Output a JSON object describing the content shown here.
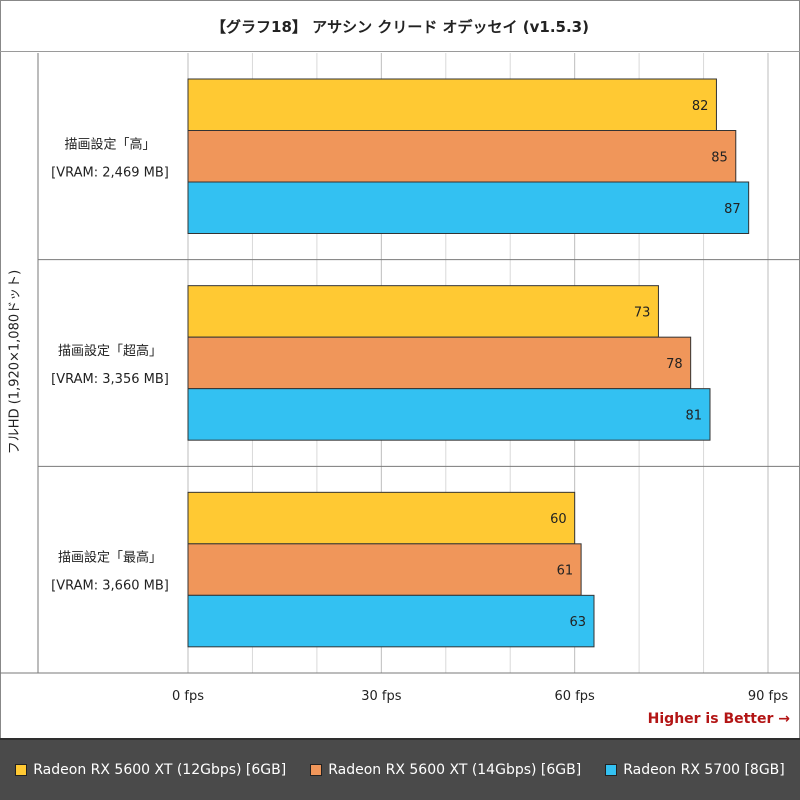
{
  "chart_data": {
    "type": "bar",
    "orientation": "horizontal",
    "title": "【グラフ18】 アサシン クリード オデッセイ (v1.5.3)",
    "group_axis_label": "フルHD (1,920×1,080ドット)",
    "groups": [
      {
        "label_line1": "描画設定「高」",
        "label_line2": "[VRAM: 2,469 MB]"
      },
      {
        "label_line1": "描画設定「超高」",
        "label_line2": "[VRAM: 3,356 MB]"
      },
      {
        "label_line1": "描画設定「最高」",
        "label_line2": "[VRAM: 3,660 MB]"
      }
    ],
    "series": [
      {
        "name": "Radeon RX 5600 XT (12Gbps) [6GB]",
        "color": "#ffc933",
        "values": [
          82,
          73,
          60
        ]
      },
      {
        "name": "Radeon RX 5600 XT (14Gbps) [6GB]",
        "color": "#f0965a",
        "values": [
          85,
          78,
          61
        ]
      },
      {
        "name": "Radeon RX 5700 [8GB]",
        "color": "#33c1f2",
        "values": [
          87,
          81,
          63
        ]
      }
    ],
    "xlim": [
      0,
      90
    ],
    "x_ticks": [
      0,
      30,
      60,
      90
    ],
    "x_tick_labels": [
      "0 fps",
      "30 fps",
      "60 fps",
      "90 fps"
    ],
    "x_minor_step": 10,
    "grid": true,
    "legend_position": "bottom",
    "note": "Higher is Better →"
  }
}
